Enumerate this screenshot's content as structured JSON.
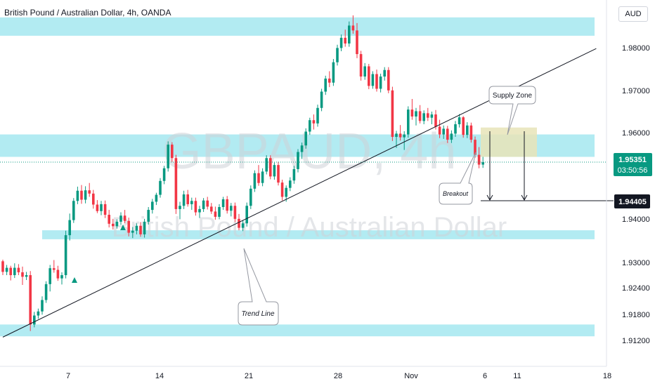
{
  "header": {
    "title": "British Pound / Australian Dollar, 4h, OANDA",
    "currency": "AUD"
  },
  "watermark": {
    "symbol": "GBPAUD, 4h",
    "name": "British Pound / Australian Dollar"
  },
  "price_tag": {
    "price": "1.95351",
    "countdown": "03:50:56",
    "color": "#089981"
  },
  "target_tag": {
    "price": "1.94405"
  },
  "annotations": {
    "supply_zone": "Supply Zone",
    "breakout": "Breakout",
    "trend_line": "Trend Line"
  },
  "colors": {
    "zone": "#b2ebf2",
    "up": "#089981",
    "down": "#f23645",
    "supply": "#e8e4b8"
  },
  "chart_data": {
    "type": "candlestick",
    "y_ticks": [
      "1.98000",
      "1.97000",
      "1.96000",
      "1.94000",
      "1.93000",
      "1.92400",
      "1.91800",
      "1.91200"
    ],
    "x_ticks": [
      "7",
      "14",
      "21",
      "28",
      "Nov",
      "6",
      "11",
      "18"
    ],
    "ylim": [
      1.9055,
      1.9912
    ],
    "zones": [
      [
        1.9845,
        1.989
      ],
      [
        1.9548,
        1.9603
      ],
      [
        1.9346,
        1.9368
      ],
      [
        1.9108,
        1.9137
      ]
    ],
    "supply_zone": [
      1.9548,
      1.962
    ],
    "trend_line": [
      [
        0,
        1.9106
      ],
      [
        124,
        1.9719
      ]
    ],
    "target": 1.94405,
    "last_price": 1.95351,
    "candles": [
      [
        1.9292,
        1.9296,
        1.9258,
        1.9266
      ],
      [
        1.9266,
        1.9283,
        1.9258,
        1.9276
      ],
      [
        1.9276,
        1.9281,
        1.9245,
        1.9258
      ],
      [
        1.9258,
        1.9287,
        1.9251,
        1.9276
      ],
      [
        1.9276,
        1.9285,
        1.9258,
        1.9265
      ],
      [
        1.9265,
        1.9279,
        1.9234,
        1.9254
      ],
      [
        1.9254,
        1.9266,
        1.9246,
        1.9258
      ],
      [
        1.9258,
        1.9268,
        1.9121,
        1.9137
      ],
      [
        1.9137,
        1.9168,
        1.913,
        1.9159
      ],
      [
        1.9159,
        1.9176,
        1.9151,
        1.9169
      ],
      [
        1.9169,
        1.9206,
        1.9161,
        1.9197
      ],
      [
        1.9197,
        1.9243,
        1.919,
        1.9236
      ],
      [
        1.9236,
        1.9283,
        1.9218,
        1.9275
      ],
      [
        1.9275,
        1.9295,
        1.9264,
        1.9271
      ],
      [
        1.9271,
        1.9281,
        1.9244,
        1.925
      ],
      [
        1.925,
        1.9265,
        1.9235,
        1.9258
      ],
      [
        1.9258,
        1.9367,
        1.925,
        1.9356
      ],
      [
        1.9356,
        1.9409,
        1.9343,
        1.9393
      ],
      [
        1.9393,
        1.9447,
        1.9386,
        1.944
      ],
      [
        1.944,
        1.9475,
        1.9432,
        1.9465
      ],
      [
        1.9465,
        1.9479,
        1.9433,
        1.9443
      ],
      [
        1.9443,
        1.9476,
        1.9434,
        1.9466
      ],
      [
        1.9466,
        1.9484,
        1.945,
        1.9458
      ],
      [
        1.9458,
        1.9467,
        1.9421,
        1.9431
      ],
      [
        1.9431,
        1.9442,
        1.941,
        1.9415
      ],
      [
        1.9415,
        1.944,
        1.9405,
        1.9432
      ],
      [
        1.9432,
        1.9441,
        1.9398,
        1.9406
      ],
      [
        1.9406,
        1.9418,
        1.9375,
        1.9384
      ],
      [
        1.9384,
        1.9396,
        1.937,
        1.9378
      ],
      [
        1.9378,
        1.9395,
        1.9372,
        1.9389
      ],
      [
        1.9389,
        1.9412,
        1.9381,
        1.9404
      ],
      [
        1.9404,
        1.9418,
        1.9385,
        1.9391
      ],
      [
        1.9391,
        1.9399,
        1.9353,
        1.9362
      ],
      [
        1.9362,
        1.9376,
        1.9349,
        1.9367
      ],
      [
        1.9367,
        1.9385,
        1.9358,
        1.9379
      ],
      [
        1.9379,
        1.9388,
        1.9352,
        1.9358
      ],
      [
        1.9358,
        1.9396,
        1.935,
        1.9389
      ],
      [
        1.9389,
        1.9425,
        1.9382,
        1.9418
      ],
      [
        1.9418,
        1.9445,
        1.9409,
        1.9438
      ],
      [
        1.9438,
        1.946,
        1.943,
        1.9455
      ],
      [
        1.9455,
        1.9496,
        1.9448,
        1.9489
      ],
      [
        1.9489,
        1.9526,
        1.9481,
        1.952
      ],
      [
        1.952,
        1.9586,
        1.9512,
        1.9578
      ],
      [
        1.9578,
        1.9584,
        1.9536,
        1.9545
      ],
      [
        1.9545,
        1.9553,
        1.9408,
        1.942
      ],
      [
        1.942,
        1.9438,
        1.9395,
        1.9428
      ],
      [
        1.9428,
        1.9465,
        1.942,
        1.9456
      ],
      [
        1.9456,
        1.9467,
        1.9426,
        1.9432
      ],
      [
        1.9432,
        1.9448,
        1.9418,
        1.944
      ],
      [
        1.944,
        1.9448,
        1.9404,
        1.9412
      ],
      [
        1.9412,
        1.9428,
        1.9398,
        1.942
      ],
      [
        1.942,
        1.9447,
        1.9413,
        1.9441
      ],
      [
        1.9441,
        1.945,
        1.9419,
        1.9426
      ],
      [
        1.9426,
        1.9435,
        1.9408,
        1.9414
      ],
      [
        1.9414,
        1.9426,
        1.9394,
        1.9401
      ],
      [
        1.9401,
        1.9432,
        1.9395,
        1.9425
      ],
      [
        1.9425,
        1.945,
        1.9418,
        1.9444
      ],
      [
        1.9444,
        1.9452,
        1.9409,
        1.9416
      ],
      [
        1.9416,
        1.9435,
        1.9402,
        1.9428
      ],
      [
        1.9428,
        1.9436,
        1.9388,
        1.9396
      ],
      [
        1.9396,
        1.9408,
        1.9368,
        1.9374
      ],
      [
        1.9374,
        1.9392,
        1.9366,
        1.9385
      ],
      [
        1.9385,
        1.9436,
        1.9377,
        1.9428
      ],
      [
        1.9428,
        1.9478,
        1.942,
        1.947
      ],
      [
        1.947,
        1.9515,
        1.9462,
        1.9508
      ],
      [
        1.9508,
        1.9528,
        1.9477,
        1.9484
      ],
      [
        1.9484,
        1.952,
        1.9476,
        1.9512
      ],
      [
        1.9512,
        1.9552,
        1.9505,
        1.9545
      ],
      [
        1.9545,
        1.9552,
        1.9493,
        1.95
      ],
      [
        1.95,
        1.9534,
        1.9492,
        1.9528
      ],
      [
        1.9528,
        1.9536,
        1.9478,
        1.9485
      ],
      [
        1.9485,
        1.9492,
        1.9441,
        1.945
      ],
      [
        1.945,
        1.9478,
        1.9438,
        1.9472
      ],
      [
        1.9472,
        1.9498,
        1.9464,
        1.949
      ],
      [
        1.949,
        1.9526,
        1.9482,
        1.9518
      ],
      [
        1.9518,
        1.9567,
        1.951,
        1.956
      ],
      [
        1.956,
        1.9583,
        1.9543,
        1.9576
      ],
      [
        1.9576,
        1.9618,
        1.9568,
        1.961
      ],
      [
        1.961,
        1.9644,
        1.9602,
        1.9638
      ],
      [
        1.9638,
        1.9652,
        1.9615,
        1.963
      ],
      [
        1.963,
        1.9676,
        1.9622,
        1.9668
      ],
      [
        1.9668,
        1.9715,
        1.966,
        1.9708
      ],
      [
        1.9708,
        1.9747,
        1.97,
        1.974
      ],
      [
        1.974,
        1.9758,
        1.9719,
        1.973
      ],
      [
        1.973,
        1.9788,
        1.9722,
        1.978
      ],
      [
        1.978,
        1.9823,
        1.9772,
        1.9815
      ],
      [
        1.9815,
        1.9848,
        1.9807,
        1.984
      ],
      [
        1.984,
        1.986,
        1.9818,
        1.9826
      ],
      [
        1.9826,
        1.988,
        1.9818,
        1.987
      ],
      [
        1.987,
        1.9895,
        1.985,
        1.9858
      ],
      [
        1.9858,
        1.9876,
        1.979,
        1.98
      ],
      [
        1.98,
        1.9808,
        1.9735,
        1.9745
      ],
      [
        1.9745,
        1.9778,
        1.9737,
        1.977
      ],
      [
        1.977,
        1.9776,
        1.9714,
        1.9722
      ],
      [
        1.9722,
        1.9758,
        1.9715,
        1.9751
      ],
      [
        1.9751,
        1.9762,
        1.9708,
        1.9715
      ],
      [
        1.9715,
        1.9752,
        1.9706,
        1.9745
      ],
      [
        1.9745,
        1.9768,
        1.9735,
        1.9761
      ],
      [
        1.9761,
        1.9768,
        1.9704,
        1.9711
      ],
      [
        1.9711,
        1.972,
        1.9587,
        1.9597
      ],
      [
        1.9597,
        1.9612,
        1.957,
        1.9605
      ],
      [
        1.9605,
        1.9626,
        1.9588,
        1.9596
      ],
      [
        1.9596,
        1.9611,
        1.9565,
        1.9603
      ],
      [
        1.9603,
        1.9672,
        1.9595,
        1.9664
      ],
      [
        1.9664,
        1.969,
        1.9639,
        1.9647
      ],
      [
        1.9647,
        1.9668,
        1.9625,
        1.966
      ],
      [
        1.966,
        1.9675,
        1.963,
        1.9636
      ],
      [
        1.9636,
        1.9662,
        1.9628,
        1.9655
      ],
      [
        1.9655,
        1.9668,
        1.9636,
        1.9644
      ],
      [
        1.9644,
        1.9659,
        1.9628,
        1.9652
      ],
      [
        1.9652,
        1.9663,
        1.9615,
        1.9622
      ],
      [
        1.9622,
        1.9639,
        1.9594,
        1.9603
      ],
      [
        1.9603,
        1.9625,
        1.9592,
        1.9617
      ],
      [
        1.9617,
        1.9624,
        1.9582,
        1.959
      ],
      [
        1.959,
        1.9613,
        1.9582,
        1.9605
      ],
      [
        1.9605,
        1.9636,
        1.9597,
        1.9628
      ],
      [
        1.9628,
        1.9653,
        1.962,
        1.9645
      ],
      [
        1.9645,
        1.9648,
        1.9595,
        1.9602
      ],
      [
        1.9602,
        1.9633,
        1.9594,
        1.9625
      ],
      [
        1.9625,
        1.9632,
        1.9583,
        1.959
      ],
      [
        1.959,
        1.9598,
        1.9546,
        1.9553
      ],
      [
        1.9553,
        1.9572,
        1.952,
        1.9529
      ],
      [
        1.9529,
        1.9548,
        1.9521,
        1.9535
      ]
    ]
  }
}
